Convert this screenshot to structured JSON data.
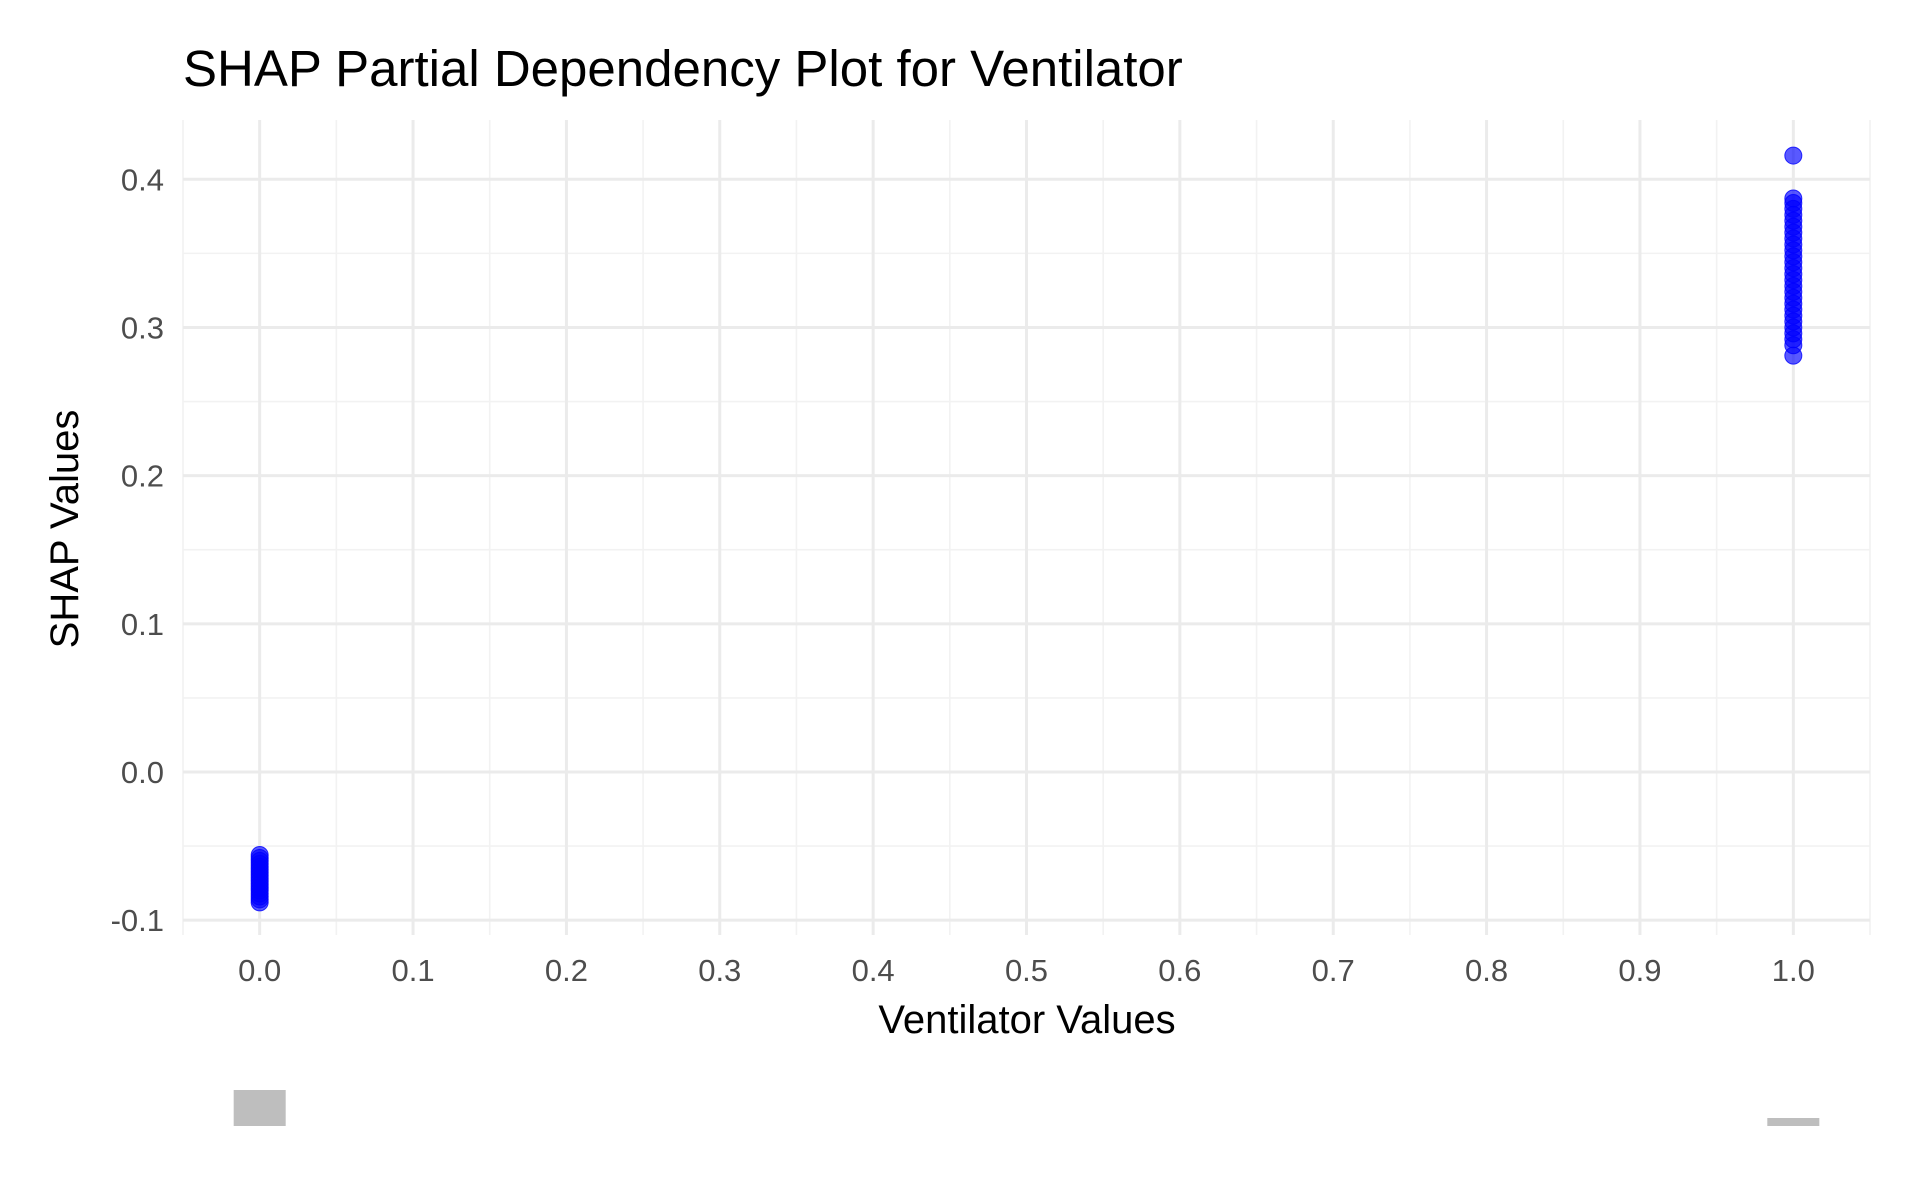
{
  "chart_data": {
    "type": "scatter",
    "title": "SHAP Partial Dependency Plot for Ventilator",
    "xlabel": "Ventilator Values",
    "ylabel": "SHAP Values",
    "xlim": [
      -0.05,
      1.05
    ],
    "ylim": [
      -0.11,
      0.44
    ],
    "x_ticks": [
      {
        "value": 0.0,
        "label": "0.0"
      },
      {
        "value": 0.1,
        "label": "0.1"
      },
      {
        "value": 0.2,
        "label": "0.2"
      },
      {
        "value": 0.3,
        "label": "0.3"
      },
      {
        "value": 0.4,
        "label": "0.4"
      },
      {
        "value": 0.5,
        "label": "0.5"
      },
      {
        "value": 0.6,
        "label": "0.6"
      },
      {
        "value": 0.7,
        "label": "0.7"
      },
      {
        "value": 0.8,
        "label": "0.8"
      },
      {
        "value": 0.9,
        "label": "0.9"
      },
      {
        "value": 1.0,
        "label": "1.0"
      }
    ],
    "y_ticks": [
      {
        "value": -0.1,
        "label": "-0.1"
      },
      {
        "value": 0.0,
        "label": "0.0"
      },
      {
        "value": 0.1,
        "label": "0.1"
      },
      {
        "value": 0.2,
        "label": "0.2"
      },
      {
        "value": 0.3,
        "label": "0.3"
      },
      {
        "value": 0.4,
        "label": "0.4"
      }
    ],
    "grid": true,
    "point_color": "#0000ff",
    "point_opacity": 0.65,
    "series": [
      {
        "points": [
          {
            "x": 0,
            "y": -0.056
          },
          {
            "x": 0,
            "y": -0.058
          },
          {
            "x": 0,
            "y": -0.06
          },
          {
            "x": 0,
            "y": -0.062
          },
          {
            "x": 0,
            "y": -0.064
          },
          {
            "x": 0,
            "y": -0.066
          },
          {
            "x": 0,
            "y": -0.068
          },
          {
            "x": 0,
            "y": -0.07
          },
          {
            "x": 0,
            "y": -0.072
          },
          {
            "x": 0,
            "y": -0.074
          },
          {
            "x": 0,
            "y": -0.076
          },
          {
            "x": 0,
            "y": -0.078
          },
          {
            "x": 0,
            "y": -0.08
          },
          {
            "x": 0,
            "y": -0.082
          },
          {
            "x": 0,
            "y": -0.084
          },
          {
            "x": 0,
            "y": -0.086
          },
          {
            "x": 0,
            "y": -0.088
          },
          {
            "x": 1,
            "y": 0.281
          },
          {
            "x": 1,
            "y": 0.288
          },
          {
            "x": 1,
            "y": 0.292
          },
          {
            "x": 1,
            "y": 0.296
          },
          {
            "x": 1,
            "y": 0.3
          },
          {
            "x": 1,
            "y": 0.304
          },
          {
            "x": 1,
            "y": 0.308
          },
          {
            "x": 1,
            "y": 0.312
          },
          {
            "x": 1,
            "y": 0.316
          },
          {
            "x": 1,
            "y": 0.32
          },
          {
            "x": 1,
            "y": 0.324
          },
          {
            "x": 1,
            "y": 0.328
          },
          {
            "x": 1,
            "y": 0.332
          },
          {
            "x": 1,
            "y": 0.336
          },
          {
            "x": 1,
            "y": 0.34
          },
          {
            "x": 1,
            "y": 0.344
          },
          {
            "x": 1,
            "y": 0.348
          },
          {
            "x": 1,
            "y": 0.352
          },
          {
            "x": 1,
            "y": 0.356
          },
          {
            "x": 1,
            "y": 0.36
          },
          {
            "x": 1,
            "y": 0.364
          },
          {
            "x": 1,
            "y": 0.368
          },
          {
            "x": 1,
            "y": 0.372
          },
          {
            "x": 1,
            "y": 0.376
          },
          {
            "x": 1,
            "y": 0.38
          },
          {
            "x": 1,
            "y": 0.384
          },
          {
            "x": 1,
            "y": 0.387
          },
          {
            "x": 1,
            "y": 0.416
          }
        ]
      }
    ],
    "marginal_bars": [
      {
        "x": 0,
        "color": "#bebebe",
        "thickness": "thick"
      },
      {
        "x": 1,
        "color": "#bebebe",
        "thickness": "thin"
      }
    ]
  }
}
